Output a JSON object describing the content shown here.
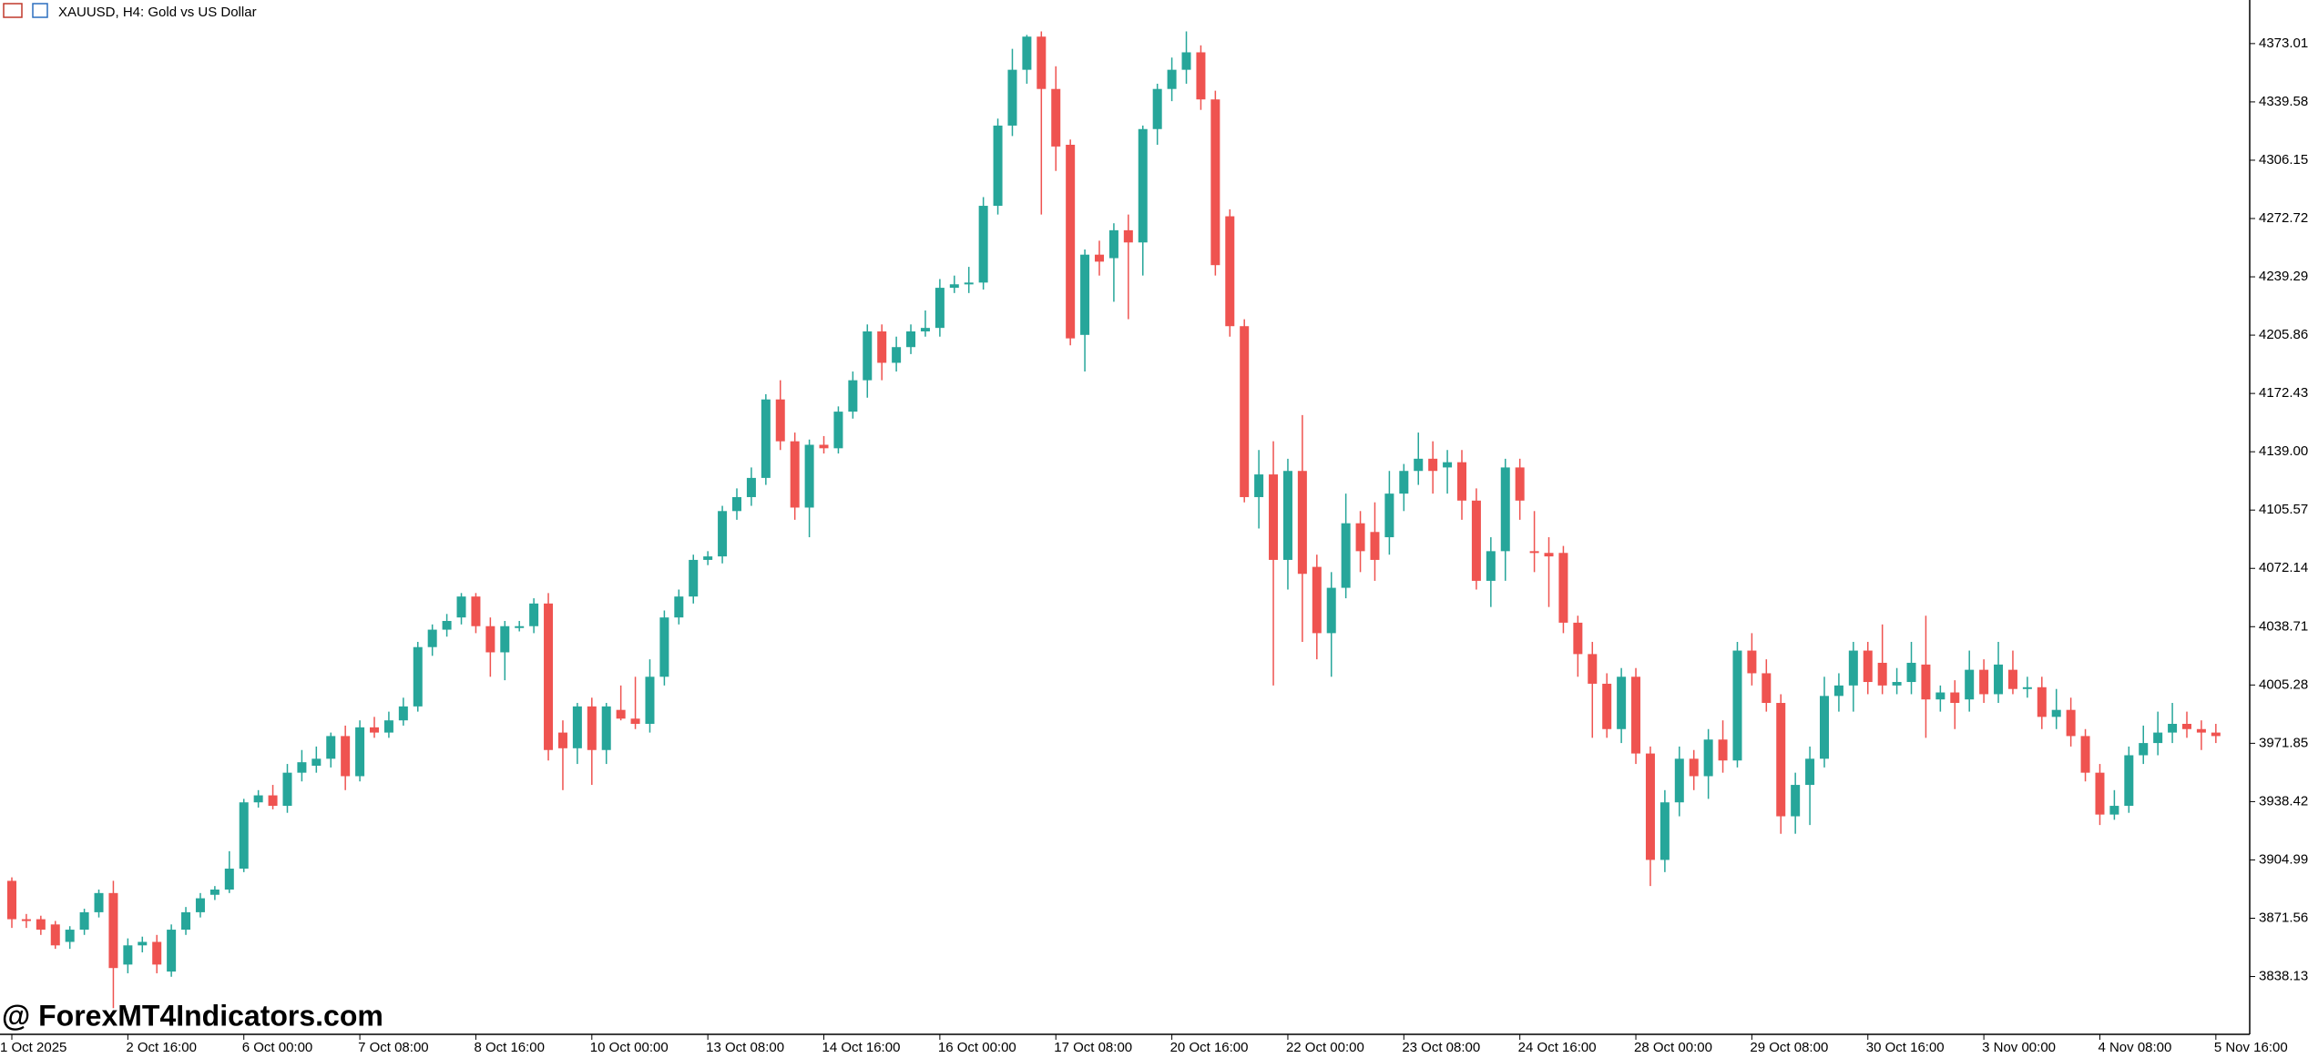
{
  "chart_data": {
    "type": "candlestick",
    "title": "XAUUSD, H4:  Gold vs US Dollar",
    "watermark": "@ ForexMT4Indicators.com",
    "up_color": "#26a69a",
    "down_color": "#ef5350",
    "ylim": [
      3805,
      4398
    ],
    "yticks": [
      4373.01,
      4339.58,
      4306.15,
      4272.72,
      4239.29,
      4205.86,
      4172.43,
      {
        "value": 4139,
        "label": "4139.00"
      },
      4105.57,
      4072.14,
      4038.71,
      4005.28,
      3971.85,
      3938.42,
      3904.99,
      3871.56,
      3838.13
    ],
    "categories": [
      "1 Oct 2025",
      null,
      null,
      null,
      null,
      null,
      null,
      null,
      "2 Oct 16:00",
      null,
      null,
      null,
      null,
      null,
      null,
      null,
      "6 Oct 00:00",
      null,
      null,
      null,
      null,
      null,
      null,
      null,
      "7 Oct 08:00",
      null,
      null,
      null,
      null,
      null,
      null,
      null,
      "8 Oct 16:00",
      null,
      null,
      null,
      null,
      null,
      null,
      null,
      "10 Oct 00:00",
      null,
      null,
      null,
      null,
      null,
      null,
      null,
      "13 Oct 08:00",
      null,
      null,
      null,
      null,
      null,
      null,
      null,
      "14 Oct 16:00",
      null,
      null,
      null,
      null,
      null,
      null,
      null,
      "16 Oct 00:00",
      null,
      null,
      null,
      null,
      null,
      null,
      null,
      "17 Oct 08:00",
      null,
      null,
      null,
      null,
      null,
      null,
      null,
      "20 Oct 16:00",
      null,
      null,
      null,
      null,
      null,
      null,
      null,
      "22 Oct 00:00",
      null,
      null,
      null,
      null,
      null,
      null,
      null,
      "23 Oct 08:00",
      null,
      null,
      null,
      null,
      null,
      null,
      null,
      "24 Oct 16:00",
      null,
      null,
      null,
      null,
      null,
      null,
      null,
      "28 Oct 00:00",
      null,
      null,
      null,
      null,
      null,
      null,
      null,
      "29 Oct 08:00",
      null,
      null,
      null,
      null,
      null,
      null,
      null,
      "30 Oct 16:00",
      null,
      null,
      null,
      null,
      null,
      null,
      null,
      "3 Nov 00:00",
      null,
      null,
      null,
      null,
      null,
      null,
      null,
      "4 Nov 08:00",
      null,
      null,
      null,
      null,
      null,
      null,
      null,
      "5 Nov 16:00"
    ],
    "ohlc": [
      [
        3893,
        3895,
        3866,
        3871
      ],
      [
        3871,
        3874,
        3866,
        3870
      ],
      [
        3871,
        3873,
        3862,
        3865
      ],
      [
        3868,
        3870,
        3854,
        3856
      ],
      [
        3858,
        3867,
        3854,
        3865
      ],
      [
        3865,
        3877,
        3862,
        3875
      ],
      [
        3875,
        3888,
        3872,
        3886
      ],
      [
        3886,
        3893,
        3820,
        3843
      ],
      [
        3845,
        3860,
        3840,
        3856
      ],
      [
        3856,
        3861,
        3852,
        3858
      ],
      [
        3858,
        3862,
        3840,
        3845
      ],
      [
        3841,
        3868,
        3838,
        3865
      ],
      [
        3865,
        3878,
        3862,
        3875
      ],
      [
        3875,
        3886,
        3872,
        3883
      ],
      [
        3885,
        3890,
        3882,
        3888
      ],
      [
        3888,
        3910,
        3886,
        3900
      ],
      [
        3900,
        3940,
        3898,
        3938
      ],
      [
        3938,
        3945,
        3935,
        3942
      ],
      [
        3942,
        3948,
        3934,
        3936
      ],
      [
        3936,
        3960,
        3932,
        3955
      ],
      [
        3955,
        3968,
        3950,
        3961
      ],
      [
        3959,
        3970,
        3955,
        3963
      ],
      [
        3963,
        3978,
        3958,
        3976
      ],
      [
        3976,
        3982,
        3945,
        3953
      ],
      [
        3953,
        3985,
        3950,
        3981
      ],
      [
        3981,
        3987,
        3975,
        3978
      ],
      [
        3978,
        3990,
        3975,
        3985
      ],
      [
        3985,
        3998,
        3982,
        3993
      ],
      [
        3993,
        4030,
        3990,
        4027
      ],
      [
        4027,
        4040,
        4022,
        4037
      ],
      [
        4037,
        4046,
        4033,
        4042
      ],
      [
        4044,
        4058,
        4040,
        4056
      ],
      [
        4056,
        4058,
        4035,
        4039
      ],
      [
        4039,
        4044,
        4010,
        4024
      ],
      [
        4024,
        4042,
        4008,
        4039
      ],
      [
        4039,
        4042,
        4036,
        4039
      ],
      [
        4039,
        4055,
        4035,
        4052
      ],
      [
        4052,
        4058,
        3962,
        3968
      ],
      [
        3978,
        3985,
        3945,
        3969
      ],
      [
        3969,
        3995,
        3960,
        3993
      ],
      [
        3993,
        3998,
        3948,
        3968
      ],
      [
        3968,
        3995,
        3960,
        3993
      ],
      [
        3991,
        4005,
        3985,
        3986
      ],
      [
        3986,
        4010,
        3980,
        3983
      ],
      [
        3983,
        4020,
        3978,
        4010
      ],
      [
        4010,
        4048,
        4005,
        4044
      ],
      [
        4044,
        4060,
        4040,
        4056
      ],
      [
        4056,
        4080,
        4052,
        4077
      ],
      [
        4077,
        4082,
        4074,
        4079
      ],
      [
        4079,
        4108,
        4075,
        4105
      ],
      [
        4105,
        4118,
        4100,
        4113
      ],
      [
        4113,
        4130,
        4108,
        4124
      ],
      [
        4124,
        4172,
        4120,
        4169
      ],
      [
        4169,
        4180,
        4140,
        4145
      ],
      [
        4145,
        4150,
        4100,
        4107
      ],
      [
        4107,
        4146,
        4090,
        4143
      ],
      [
        4143,
        4148,
        4138,
        4141
      ],
      [
        4141,
        4165,
        4138,
        4162
      ],
      [
        4162,
        4185,
        4158,
        4180
      ],
      [
        4180,
        4212,
        4170,
        4208
      ],
      [
        4208,
        4212,
        4180,
        4190
      ],
      [
        4190,
        4205,
        4185,
        4199
      ],
      [
        4199,
        4212,
        4195,
        4208
      ],
      [
        4208,
        4220,
        4205,
        4210
      ],
      [
        4210,
        4238,
        4205,
        4233
      ],
      [
        4233,
        4240,
        4230,
        4235
      ],
      [
        4235,
        4245,
        4230,
        4236
      ],
      [
        4236,
        4285,
        4232,
        4280
      ],
      [
        4280,
        4330,
        4275,
        4326
      ],
      [
        4326,
        4370,
        4320,
        4358
      ],
      [
        4358,
        4378,
        4350,
        4377
      ],
      [
        4377,
        4380,
        4275,
        4347
      ],
      [
        4347,
        4360,
        4300,
        4314
      ],
      [
        4315,
        4318,
        4200,
        4204
      ],
      [
        4206,
        4255,
        4185,
        4252
      ],
      [
        4252,
        4260,
        4240,
        4248
      ],
      [
        4250,
        4270,
        4225,
        4266
      ],
      [
        4266,
        4275,
        4215,
        4259
      ],
      [
        4259,
        4326,
        4240,
        4324
      ],
      [
        4324,
        4350,
        4315,
        4347
      ],
      [
        4347,
        4365,
        4340,
        4358
      ],
      [
        4358,
        4380,
        4350,
        4368
      ],
      [
        4368,
        4372,
        4335,
        4341
      ],
      [
        4341,
        4346,
        4240,
        4246
      ],
      [
        4274,
        4278,
        4205,
        4211
      ],
      [
        4211,
        4215,
        4110,
        4113
      ],
      [
        4113,
        4140,
        4095,
        4126
      ],
      [
        4126,
        4145,
        4005,
        4077
      ],
      [
        4077,
        4135,
        4060,
        4128
      ],
      [
        4128,
        4160,
        4030,
        4069
      ],
      [
        4073,
        4080,
        4020,
        4035
      ],
      [
        4035,
        4070,
        4010,
        4061
      ],
      [
        4061,
        4115,
        4055,
        4098
      ],
      [
        4098,
        4105,
        4070,
        4082
      ],
      [
        4093,
        4110,
        4065,
        4077
      ],
      [
        4090,
        4128,
        4080,
        4115
      ],
      [
        4115,
        4132,
        4105,
        4128
      ],
      [
        4128,
        4150,
        4120,
        4135
      ],
      [
        4135,
        4145,
        4115,
        4128
      ],
      [
        4130,
        4140,
        4115,
        4133
      ],
      [
        4133,
        4140,
        4100,
        4111
      ],
      [
        4111,
        4118,
        4060,
        4065
      ],
      [
        4065,
        4090,
        4050,
        4082
      ],
      [
        4082,
        4135,
        4065,
        4130
      ],
      [
        4130,
        4135,
        4100,
        4111
      ],
      [
        4082,
        4105,
        4070,
        4081
      ],
      [
        4081,
        4090,
        4050,
        4079
      ],
      [
        4081,
        4085,
        4035,
        4041
      ],
      [
        4041,
        4045,
        4010,
        4023
      ],
      [
        4023,
        4030,
        3975,
        4006
      ],
      [
        4006,
        4012,
        3975,
        3980
      ],
      [
        3980,
        4015,
        3972,
        4010
      ],
      [
        4010,
        4015,
        3960,
        3966
      ],
      [
        3966,
        3970,
        3890,
        3905
      ],
      [
        3905,
        3945,
        3898,
        3938
      ],
      [
        3938,
        3970,
        3930,
        3963
      ],
      [
        3963,
        3968,
        3945,
        3953
      ],
      [
        3953,
        3980,
        3940,
        3974
      ],
      [
        3974,
        3985,
        3955,
        3962
      ],
      [
        3962,
        4030,
        3958,
        4025
      ],
      [
        4025,
        4035,
        4005,
        4012
      ],
      [
        4012,
        4020,
        3990,
        3995
      ],
      [
        3995,
        4000,
        3920,
        3930
      ],
      [
        3930,
        3955,
        3920,
        3948
      ],
      [
        3948,
        3970,
        3925,
        3963
      ],
      [
        3963,
        4010,
        3958,
        3999
      ],
      [
        3999,
        4012,
        3990,
        4005
      ],
      [
        4005,
        4030,
        3990,
        4025
      ],
      [
        4025,
        4030,
        4000,
        4007
      ],
      [
        4018,
        4040,
        4000,
        4005
      ],
      [
        4005,
        4015,
        4000,
        4007
      ],
      [
        4007,
        4030,
        4000,
        4018
      ],
      [
        4017,
        4045,
        3975,
        3997
      ],
      [
        3997,
        4005,
        3990,
        4001
      ],
      [
        4001,
        4008,
        3980,
        3995
      ],
      [
        3997,
        4025,
        3990,
        4014
      ],
      [
        4014,
        4020,
        3995,
        4000
      ],
      [
        4000,
        4030,
        3995,
        4017
      ],
      [
        4014,
        4025,
        4000,
        4003
      ],
      [
        4003,
        4010,
        3998,
        4004
      ],
      [
        4004,
        4010,
        3980,
        3987
      ],
      [
        3987,
        4003,
        3980,
        3991
      ],
      [
        3991,
        3998,
        3970,
        3976
      ],
      [
        3976,
        3980,
        3950,
        3955
      ],
      [
        3955,
        3960,
        3925,
        3931
      ],
      [
        3931,
        3945,
        3928,
        3936
      ],
      [
        3936,
        3970,
        3932,
        3965
      ],
      [
        3965,
        3982,
        3960,
        3972
      ],
      [
        3972,
        3990,
        3965,
        3978
      ],
      [
        3978,
        3995,
        3972,
        3983
      ],
      [
        3983,
        3990,
        3975,
        3980
      ],
      [
        3980,
        3985,
        3968,
        3978
      ],
      [
        3978,
        3983,
        3972,
        3976
      ]
    ]
  }
}
